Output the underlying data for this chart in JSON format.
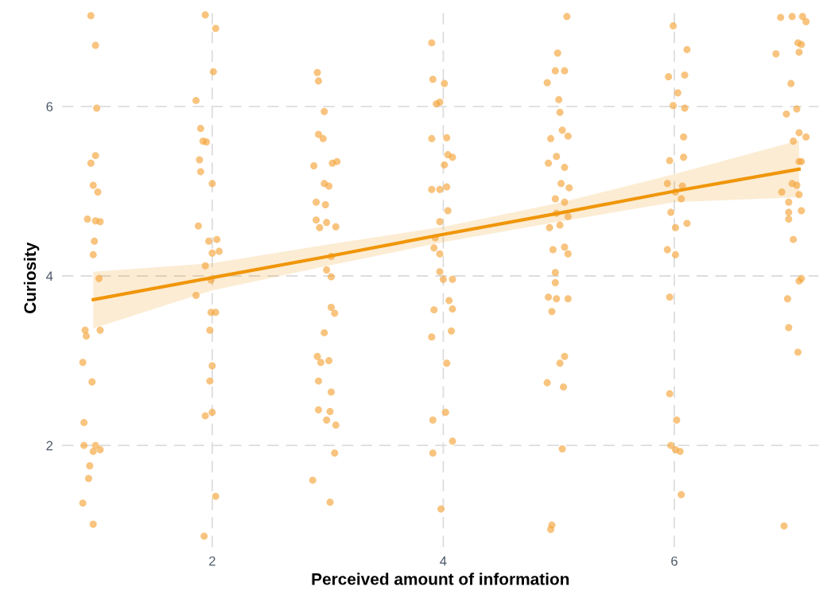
{
  "chart_data": {
    "type": "scatter",
    "xlabel": "Perceived amount of information",
    "ylabel": "Curiosity",
    "xlim": [
      0.7,
      7.25
    ],
    "ylim": [
      0.8,
      7.15
    ],
    "xticks": [
      2,
      4,
      6
    ],
    "yticks": [
      2,
      4,
      6
    ],
    "grid": true,
    "series": [
      {
        "marker": "circle",
        "color": "#f4a53a",
        "x": [
          0.95,
          0.99,
          1.0,
          0.99,
          0.95,
          0.97,
          1.01,
          0.92,
          0.99,
          1.03,
          0.98,
          0.97,
          1.02,
          0.9,
          0.91,
          1.03,
          0.88,
          0.96,
          0.89,
          0.89,
          0.99,
          0.97,
          0.94,
          0.93,
          0.88,
          0.97,
          1.03,
          1.94,
          2.03,
          2.01,
          1.86,
          1.9,
          1.92,
          1.95,
          1.89,
          1.9,
          2.0,
          1.88,
          1.97,
          2.04,
          2.0,
          2.06,
          1.94,
          1.99,
          1.86,
          1.99,
          2.03,
          1.98,
          2.0,
          1.98,
          2.0,
          1.94,
          2.03,
          1.93,
          2.91,
          2.92,
          2.97,
          2.92,
          2.96,
          2.88,
          3.04,
          3.08,
          2.97,
          3.01,
          2.9,
          2.98,
          2.9,
          2.99,
          2.93,
          3.07,
          3.03,
          2.99,
          3.03,
          3.03,
          3.06,
          2.97,
          2.91,
          2.94,
          3.01,
          2.92,
          3.03,
          2.92,
          3.02,
          2.99,
          3.07,
          3.06,
          2.87,
          3.02,
          3.9,
          3.91,
          4.01,
          3.94,
          3.97,
          3.9,
          4.03,
          4.04,
          4.08,
          4.01,
          3.97,
          4.03,
          3.9,
          4.04,
          3.97,
          3.93,
          3.92,
          3.97,
          3.97,
          4.0,
          4.08,
          4.05,
          3.92,
          4.08,
          4.07,
          3.9,
          4.03,
          4.02,
          3.91,
          4.08,
          3.91,
          3.98,
          5.07,
          4.99,
          4.97,
          5.05,
          4.9,
          5.0,
          5.01,
          4.93,
          5.03,
          5.08,
          4.91,
          4.98,
          5.05,
          5.02,
          5.09,
          4.97,
          5.05,
          4.92,
          4.98,
          5.08,
          5.01,
          5.05,
          4.95,
          5.08,
          4.97,
          4.97,
          5.08,
          4.91,
          4.98,
          4.94,
          5.05,
          5.01,
          5.04,
          4.9,
          5.03,
          4.94,
          4.93,
          5.99,
          5.95,
          6.09,
          6.11,
          6.03,
          5.99,
          6.09,
          6.08,
          5.96,
          6.08,
          5.94,
          6.07,
          6.01,
          6.06,
          5.97,
          6.11,
          6.01,
          5.94,
          6.01,
          5.96,
          5.96,
          6.02,
          5.97,
          6.01,
          6.05,
          6.06,
          6.92,
          7.02,
          7.11,
          7.14,
          6.88,
          7.07,
          7.1,
          7.08,
          7.01,
          7.06,
          6.97,
          7.08,
          7.14,
          7.03,
          7.08,
          7.1,
          7.02,
          7.06,
          6.93,
          7.08,
          6.99,
          7.1,
          6.99,
          6.99,
          7.03,
          7.1,
          7.08,
          6.98,
          6.99,
          7.07,
          6.95
        ],
        "values": [
          7.07,
          6.72,
          5.98,
          5.42,
          5.33,
          5.07,
          4.99,
          4.67,
          4.65,
          4.64,
          4.41,
          4.25,
          3.97,
          3.36,
          3.29,
          3.36,
          2.98,
          2.75,
          2.27,
          2.0,
          2.0,
          1.93,
          1.76,
          1.61,
          1.32,
          1.07,
          1.95,
          7.08,
          6.92,
          6.41,
          6.07,
          5.74,
          5.59,
          5.58,
          5.37,
          5.23,
          5.09,
          4.59,
          4.41,
          4.43,
          4.27,
          4.29,
          4.12,
          3.95,
          3.77,
          3.57,
          3.57,
          3.36,
          2.94,
          2.76,
          2.39,
          2.35,
          1.4,
          0.93,
          6.4,
          6.3,
          5.94,
          5.67,
          5.62,
          5.3,
          5.33,
          5.35,
          5.09,
          5.06,
          4.87,
          4.84,
          4.66,
          4.63,
          4.57,
          4.58,
          4.23,
          4.07,
          3.99,
          3.63,
          3.56,
          3.33,
          3.05,
          2.98,
          3.0,
          2.76,
          2.63,
          2.42,
          2.4,
          2.3,
          2.24,
          1.91,
          1.59,
          1.33,
          6.75,
          6.32,
          6.27,
          6.03,
          6.05,
          5.62,
          5.63,
          5.43,
          5.4,
          5.31,
          5.02,
          5.05,
          5.02,
          4.77,
          4.64,
          4.45,
          4.33,
          4.26,
          4.05,
          3.96,
          3.96,
          3.71,
          3.6,
          3.61,
          3.35,
          3.28,
          2.97,
          2.39,
          2.3,
          2.05,
          1.91,
          1.25,
          7.06,
          6.63,
          6.42,
          6.42,
          6.28,
          6.08,
          5.93,
          5.62,
          5.72,
          5.65,
          5.33,
          5.41,
          5.28,
          5.09,
          5.04,
          4.91,
          4.87,
          4.57,
          4.74,
          4.7,
          4.6,
          4.34,
          4.31,
          4.26,
          4.04,
          3.92,
          3.73,
          3.75,
          3.73,
          3.58,
          3.05,
          2.97,
          2.69,
          2.74,
          1.96,
          1.06,
          1.01,
          6.95,
          6.35,
          6.37,
          6.67,
          6.16,
          6.01,
          5.98,
          5.64,
          5.36,
          5.4,
          5.09,
          5.06,
          4.99,
          4.91,
          4.75,
          4.62,
          4.57,
          4.31,
          4.25,
          3.75,
          2.61,
          2.3,
          2.0,
          1.95,
          1.93,
          1.42,
          7.05,
          7.06,
          7.06,
          7.0,
          6.62,
          6.75,
          6.73,
          6.64,
          6.27,
          5.97,
          5.91,
          5.69,
          5.64,
          5.59,
          5.35,
          5.35,
          5.09,
          5.07,
          4.99,
          4.96,
          4.87,
          4.77,
          4.75,
          4.67,
          4.43,
          3.97,
          3.94,
          3.73,
          3.39,
          3.1,
          1.05
        ]
      },
      {
        "type": "line",
        "marker": "none",
        "color": "#f0960a",
        "x": [
          0.97,
          2,
          3,
          4,
          5,
          6,
          7.08
        ],
        "values": [
          3.72,
          3.98,
          4.23,
          4.49,
          4.74,
          5.0,
          5.26
        ],
        "lower": [
          3.38,
          3.83,
          4.12,
          4.4,
          4.64,
          4.87,
          4.93
        ],
        "upper": [
          4.05,
          4.15,
          4.37,
          4.58,
          4.86,
          5.2,
          5.6
        ]
      }
    ]
  }
}
